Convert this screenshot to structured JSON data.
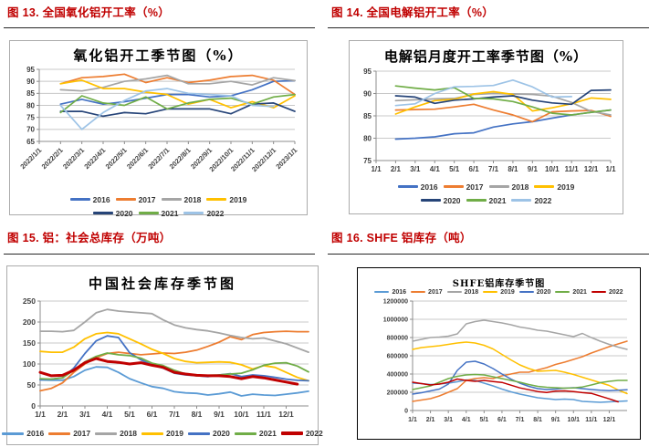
{
  "chart_data": [
    {
      "id": "alumina-operating-rate",
      "type": "line",
      "section_title": "图 13. 全国氧化铝开工率（%）",
      "title": "氧化铝开工季节图（%）",
      "ylim": [
        65,
        95
      ],
      "y_ticks": [
        65,
        70,
        75,
        80,
        85,
        90,
        95
      ],
      "x_units": 12,
      "x_tick_units": [
        0,
        1,
        2,
        3,
        4,
        5,
        6,
        7,
        8,
        9,
        10,
        11,
        12
      ],
      "x_tick_labels": [
        "2022/1/1",
        "2022/2/1",
        "2022/3/1",
        "2022/4/1",
        "2022/5/1",
        "2022/6/1",
        "2022/7/1",
        "2022/8/1",
        "2022/9/1",
        "2022/10/1",
        "2022/11/1",
        "2022/12/1",
        "2023/1/1"
      ],
      "rotate_x_labels": true,
      "legend_position": "bottom",
      "legend_rows": [
        [
          "2016",
          "2017",
          "2018",
          "2019"
        ],
        [
          "2020",
          "2021",
          "2022"
        ]
      ],
      "series": [
        {
          "name": "2016",
          "color": "#4472C4",
          "width": 1.7,
          "values": [
            null,
            80.5,
            82.5,
            80.5,
            81.5,
            83,
            84.5,
            84.5,
            83.5,
            84,
            86.5,
            90,
            90.3
          ]
        },
        {
          "name": "2017",
          "color": "#ED7D31",
          "width": 1.7,
          "values": [
            null,
            89,
            91.5,
            92,
            93,
            89.5,
            91.5,
            89.5,
            90.5,
            92,
            92.5,
            90.5,
            84.5
          ]
        },
        {
          "name": "2018",
          "color": "#A5A5A5",
          "width": 1.7,
          "values": [
            null,
            86.5,
            86,
            87.5,
            90,
            91,
            92.5,
            89,
            89,
            90,
            88.5,
            91.5,
            90.3
          ]
        },
        {
          "name": "2019",
          "color": "#FFC000",
          "width": 1.7,
          "values": [
            null,
            89,
            90.5,
            87,
            87,
            85.5,
            84.5,
            80.5,
            82.5,
            79,
            81.5,
            79,
            84
          ]
        },
        {
          "name": "2020",
          "color": "#264478",
          "width": 1.7,
          "values": [
            null,
            77.5,
            77.5,
            75.5,
            77,
            76.5,
            78.5,
            78.5,
            78.5,
            76.5,
            80.5,
            81,
            77.5
          ]
        },
        {
          "name": "2021",
          "color": "#70AD47",
          "width": 1.7,
          "values": [
            null,
            77,
            84,
            81,
            80,
            83.5,
            78.5,
            81,
            82.5,
            83,
            80.5,
            83.5,
            84.5
          ]
        },
        {
          "name": "2022",
          "color": "#9DC3E6",
          "width": 1.7,
          "values": [
            null,
            80,
            70,
            77,
            82,
            86,
            87,
            85,
            84.5,
            84,
            80,
            79.5,
            null
          ]
        }
      ]
    },
    {
      "id": "electrolytic-aluminum-operating-rate",
      "type": "line",
      "section_title": "图 14. 全国电解铝开工率（%）",
      "title": "电解铝月度开工率季节图（%）",
      "ylim": [
        75,
        95
      ],
      "y_ticks": [
        75,
        80,
        85,
        90,
        95
      ],
      "x_units": 12,
      "x_tick_units": [
        0,
        1,
        2,
        3,
        4,
        5,
        6,
        7,
        8,
        9,
        10,
        11,
        12
      ],
      "x_tick_labels": [
        "1/1",
        "2/1",
        "3/1",
        "4/1",
        "5/1",
        "6/1",
        "7/1",
        "8/1",
        "9/1",
        "10/1",
        "11/1",
        "12/1",
        "1/1"
      ],
      "rotate_x_labels": false,
      "legend_position": "bottom",
      "legend_rows": [
        [
          "2016",
          "2017",
          "2018",
          "2019"
        ],
        [
          "2020",
          "2021",
          "2022"
        ]
      ],
      "series": [
        {
          "name": "2016",
          "color": "#4472C4",
          "width": 1.7,
          "values": [
            null,
            79.8,
            80,
            80.3,
            81,
            81.2,
            82.5,
            83.2,
            83.7,
            84.5,
            85.2,
            85.8,
            86.3
          ]
        },
        {
          "name": "2017",
          "color": "#ED7D31",
          "width": 1.7,
          "values": [
            null,
            86.3,
            86.4,
            86.5,
            87,
            87.6,
            86.3,
            85.2,
            83.7,
            85.9,
            86.1,
            86.2,
            84.9
          ]
        },
        {
          "name": "2018",
          "color": "#A5A5A5",
          "width": 1.7,
          "values": [
            null,
            88.4,
            88.6,
            88.8,
            88.9,
            89.8,
            90,
            89.9,
            89.8,
            89.4,
            88,
            86,
            85.2
          ]
        },
        {
          "name": "2019",
          "color": "#FFC000",
          "width": 1.7,
          "values": [
            null,
            85.4,
            87,
            88.4,
            88.7,
            89.9,
            90.4,
            89.8,
            86.1,
            86.8,
            87.7,
            89,
            88.7
          ]
        },
        {
          "name": "2020",
          "color": "#264478",
          "width": 1.7,
          "values": [
            null,
            89.5,
            89.2,
            87.8,
            88.5,
            88.8,
            89.2,
            89.5,
            88.5,
            87.9,
            87.6,
            90.7,
            90.8
          ]
        },
        {
          "name": "2021",
          "color": "#70AD47",
          "width": 1.7,
          "values": [
            null,
            91.7,
            91.2,
            90.8,
            91.3,
            88.9,
            88.8,
            88.2,
            87,
            85.6,
            85.2,
            85.8,
            86.3
          ]
        },
        {
          "name": "2022",
          "color": "#9DC3E6",
          "width": 1.7,
          "values": [
            null,
            87.3,
            87.7,
            90,
            91.5,
            91.6,
            91.8,
            93,
            91.5,
            89.2,
            89.3,
            null,
            null
          ]
        }
      ]
    },
    {
      "id": "china-social-inventory",
      "type": "line",
      "section_title": "图 15. 铝：社会总库存（万吨）",
      "title": "中国社会库存季节图",
      "ylim": [
        0,
        250
      ],
      "y_ticks": [
        0,
        50,
        100,
        150,
        200,
        250
      ],
      "x_units": 24,
      "x_tick_units": [
        0,
        2,
        4,
        6,
        8,
        10,
        12,
        14,
        16,
        18,
        20,
        22
      ],
      "x_tick_labels": [
        "1/1",
        "2/1",
        "3/1",
        "4/1",
        "5/1",
        "6/1",
        "7/1",
        "8/1",
        "9/1",
        "10/1",
        "11/1",
        "12/1"
      ],
      "rotate_x_labels": false,
      "legend_position": "bottom",
      "legend_rows": [
        [
          "2016",
          "2017",
          "2018",
          "2019",
          "2020",
          "2021",
          "2022"
        ]
      ],
      "series": [
        {
          "name": "2016",
          "color": "#5B9BD5",
          "width": 1.8,
          "values": [
            62,
            61,
            61,
            70,
            85,
            93,
            92,
            80,
            65,
            55,
            46,
            42,
            34,
            31,
            30,
            26,
            29,
            33,
            24,
            28,
            26,
            25,
            28,
            31,
            35
          ]
        },
        {
          "name": "2017",
          "color": "#ED7D31",
          "width": 1.8,
          "values": [
            36,
            42,
            55,
            80,
            100,
            115,
            125,
            128,
            125,
            122,
            124,
            126,
            125,
            128,
            133,
            142,
            152,
            165,
            158,
            170,
            175,
            177,
            178,
            177,
            177
          ]
        },
        {
          "name": "2018",
          "color": "#A5A5A5",
          "width": 1.8,
          "values": [
            178,
            178,
            177,
            180,
            200,
            222,
            230,
            226,
            224,
            222,
            220,
            205,
            193,
            186,
            182,
            179,
            174,
            168,
            163,
            160,
            162,
            155,
            148,
            138,
            128
          ]
        },
        {
          "name": "2019",
          "color": "#FFC000",
          "width": 1.8,
          "values": [
            130,
            128,
            128,
            140,
            160,
            172,
            175,
            172,
            160,
            148,
            135,
            125,
            113,
            106,
            103,
            104,
            105,
            104,
            98,
            88,
            96,
            92,
            80,
            68,
            60
          ]
        },
        {
          "name": "2020",
          "color": "#4472C4",
          "width": 1.8,
          "values": [
            63,
            64,
            67,
            90,
            125,
            155,
            167,
            163,
            127,
            110,
            98,
            90,
            78,
            74,
            72,
            70,
            74,
            77,
            70,
            74,
            72,
            68,
            64,
            61,
            60
          ]
        },
        {
          "name": "2021",
          "color": "#70AD47",
          "width": 1.8,
          "values": [
            65,
            64,
            67,
            85,
            105,
            118,
            126,
            122,
            120,
            114,
            102,
            96,
            85,
            76,
            72,
            73,
            74,
            76,
            78,
            86,
            97,
            102,
            103,
            95,
            81
          ]
        },
        {
          "name": "2022",
          "color": "#C00000",
          "width": 3,
          "values": [
            80,
            72,
            73,
            85,
            103,
            113,
            106,
            104,
            100,
            103,
            97,
            92,
            80,
            76,
            73,
            72,
            72,
            70,
            65,
            70,
            67,
            62,
            57,
            52,
            null
          ]
        }
      ]
    },
    {
      "id": "shfe-aluminum-inventory",
      "type": "line",
      "section_title": "图 16.  SHFE 铝库存（吨）",
      "title": "SHFE铝库存季节图",
      "ylim": [
        0,
        1200000
      ],
      "y_ticks": [
        0,
        200000,
        400000,
        600000,
        800000,
        1000000,
        1200000
      ],
      "x_units": 24,
      "x_tick_units": [
        0,
        2,
        4,
        6,
        8,
        10,
        12,
        14,
        16,
        18,
        20,
        22
      ],
      "x_tick_labels": [
        "1/1",
        "2/1",
        "3/1",
        "4/1",
        "5/1",
        "6/1",
        "7/1",
        "8/1",
        "9/1",
        "10/1",
        "11/1",
        "12/1"
      ],
      "rotate_x_labels": false,
      "legend_position": "top",
      "legend_rows": [
        [
          "2016",
          "2017",
          "2018",
          "2019",
          "2020",
          "2021",
          "2022"
        ]
      ],
      "series": [
        {
          "name": "2016",
          "color": "#5B9BD5",
          "width": 1.5,
          "values": [
            300000,
            295000,
            285000,
            290000,
            300000,
            315000,
            335000,
            330000,
            300000,
            270000,
            235000,
            205000,
            180000,
            160000,
            140000,
            130000,
            120000,
            125000,
            120000,
            100000,
            95000,
            90000,
            95000,
            100000,
            105000
          ]
        },
        {
          "name": "2017",
          "color": "#ED7D31",
          "width": 1.5,
          "values": [
            100000,
            115000,
            130000,
            160000,
            200000,
            240000,
            330000,
            350000,
            360000,
            350000,
            380000,
            400000,
            420000,
            420000,
            445000,
            470000,
            505000,
            530000,
            560000,
            590000,
            630000,
            665000,
            700000,
            730000,
            760000
          ]
        },
        {
          "name": "2018",
          "color": "#A5A5A5",
          "width": 1.5,
          "values": [
            760000,
            780000,
            800000,
            805000,
            815000,
            840000,
            950000,
            975000,
            990000,
            975000,
            960000,
            940000,
            915000,
            900000,
            880000,
            870000,
            850000,
            830000,
            810000,
            845000,
            800000,
            760000,
            725000,
            695000,
            670000
          ]
        },
        {
          "name": "2019",
          "color": "#FFC000",
          "width": 1.5,
          "values": [
            670000,
            690000,
            700000,
            710000,
            725000,
            740000,
            750000,
            740000,
            715000,
            675000,
            615000,
            555000,
            500000,
            460000,
            430000,
            435000,
            440000,
            420000,
            395000,
            365000,
            335000,
            305000,
            275000,
            225000,
            185000
          ]
        },
        {
          "name": "2020",
          "color": "#4472C4",
          "width": 1.5,
          "values": [
            180000,
            195000,
            215000,
            235000,
            290000,
            440000,
            530000,
            540000,
            510000,
            460000,
            400000,
            345000,
            300000,
            265000,
            240000,
            230000,
            235000,
            245000,
            250000,
            240000,
            230000,
            222000,
            218000,
            222000,
            228000
          ]
        },
        {
          "name": "2021",
          "color": "#70AD47",
          "width": 1.5,
          "values": [
            230000,
            250000,
            270000,
            310000,
            350000,
            375000,
            390000,
            395000,
            390000,
            370000,
            350000,
            330000,
            310000,
            285000,
            265000,
            255000,
            250000,
            245000,
            248000,
            258000,
            280000,
            305000,
            320000,
            330000,
            330000
          ]
        },
        {
          "name": "2022",
          "color": "#C00000",
          "width": 1.5,
          "values": [
            310000,
            295000,
            280000,
            290000,
            310000,
            345000,
            330000,
            320000,
            330000,
            318000,
            308000,
            278000,
            248000,
            228000,
            208000,
            198000,
            212000,
            215000,
            208000,
            196000,
            188000,
            158000,
            128000,
            95000,
            null
          ]
        }
      ]
    }
  ]
}
